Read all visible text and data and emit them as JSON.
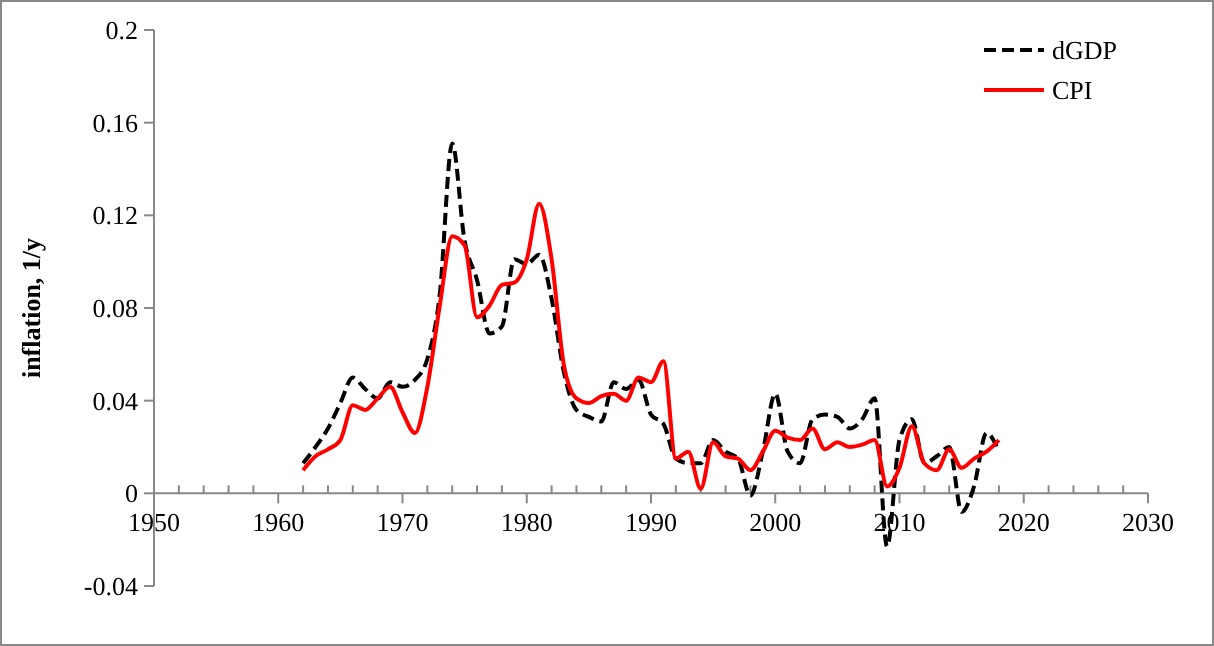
{
  "chart_data": {
    "type": "line",
    "ylabel": "inflation, 1/y",
    "x": [
      1962,
      1963,
      1964,
      1965,
      1966,
      1967,
      1968,
      1969,
      1970,
      1971,
      1972,
      1973,
      1974,
      1975,
      1976,
      1977,
      1978,
      1979,
      1980,
      1981,
      1982,
      1983,
      1984,
      1985,
      1986,
      1987,
      1988,
      1989,
      1990,
      1991,
      1992,
      1993,
      1994,
      1995,
      1996,
      1997,
      1998,
      1999,
      2000,
      2001,
      2002,
      2003,
      2004,
      2005,
      2006,
      2007,
      2008,
      2009,
      2010,
      2011,
      2012,
      2013,
      2014,
      2015,
      2016,
      2017,
      2018
    ],
    "series": [
      {
        "name": "dGDP",
        "color": "#000000",
        "line_style": "dashed",
        "values": [
          0.013,
          0.02,
          0.028,
          0.039,
          0.05,
          0.045,
          0.041,
          0.048,
          0.046,
          0.049,
          0.058,
          0.086,
          0.151,
          0.109,
          0.092,
          0.069,
          0.072,
          0.101,
          0.099,
          0.103,
          0.084,
          0.052,
          0.036,
          0.033,
          0.031,
          0.048,
          0.045,
          0.049,
          0.034,
          0.03,
          0.015,
          0.013,
          0.013,
          0.023,
          0.018,
          0.015,
          -0.001,
          0.018,
          0.043,
          0.018,
          0.013,
          0.032,
          0.034,
          0.033,
          0.028,
          0.032,
          0.041,
          -0.023,
          0.023,
          0.032,
          0.013,
          0.016,
          0.02,
          -0.008,
          0.003,
          0.026,
          0.018
        ]
      },
      {
        "name": "CPI",
        "color": "#ff0000",
        "line_style": "solid",
        "values": [
          0.01,
          0.016,
          0.019,
          0.023,
          0.038,
          0.036,
          0.041,
          0.046,
          0.035,
          0.026,
          0.046,
          0.081,
          0.111,
          0.107,
          0.076,
          0.081,
          0.09,
          0.091,
          0.101,
          0.125,
          0.101,
          0.055,
          0.041,
          0.039,
          0.042,
          0.043,
          0.04,
          0.05,
          0.048,
          0.057,
          0.015,
          0.018,
          0.002,
          0.022,
          0.016,
          0.015,
          0.01,
          0.018,
          0.027,
          0.024,
          0.023,
          0.028,
          0.019,
          0.022,
          0.02,
          0.021,
          0.023,
          0.003,
          0.011,
          0.029,
          0.013,
          0.01,
          0.019,
          0.011,
          0.015,
          0.018,
          0.023
        ]
      }
    ],
    "xlim": [
      1950,
      2030
    ],
    "xticks": [
      1950,
      {
        "value": 1952,
        "label": null
      },
      {
        "value": 1954,
        "label": null
      },
      {
        "value": 1956,
        "label": null
      },
      {
        "value": 1958,
        "label": null
      },
      1960,
      {
        "value": 1962,
        "label": null
      },
      {
        "value": 1964,
        "label": null
      },
      {
        "value": 1966,
        "label": null
      },
      {
        "value": 1968,
        "label": null
      },
      1970,
      {
        "value": 1972,
        "label": null
      },
      {
        "value": 1974,
        "label": null
      },
      {
        "value": 1976,
        "label": null
      },
      {
        "value": 1978,
        "label": null
      },
      1980,
      {
        "value": 1982,
        "label": null
      },
      {
        "value": 1984,
        "label": null
      },
      {
        "value": 1986,
        "label": null
      },
      {
        "value": 1988,
        "label": null
      },
      1990,
      {
        "value": 1992,
        "label": null
      },
      {
        "value": 1994,
        "label": null
      },
      {
        "value": 1996,
        "label": null
      },
      {
        "value": 1998,
        "label": null
      },
      2000,
      {
        "value": 2002,
        "label": null
      },
      {
        "value": 2004,
        "label": null
      },
      {
        "value": 2006,
        "label": null
      },
      {
        "value": 2008,
        "label": null
      },
      2010,
      {
        "value": 2012,
        "label": null
      },
      {
        "value": 2014,
        "label": null
      },
      {
        "value": 2016,
        "label": null
      },
      {
        "value": 2018,
        "label": null
      },
      2020,
      {
        "value": 2022,
        "label": null
      },
      {
        "value": 2024,
        "label": null
      },
      {
        "value": 2026,
        "label": null
      },
      {
        "value": 2028,
        "label": null
      },
      2030
    ],
    "ylim": [
      -0.04,
      0.2
    ],
    "yticks": [
      -0.04,
      0,
      0.04,
      0.08,
      0.12,
      0.16,
      0.2
    ],
    "grid": false,
    "legend": "top right",
    "marker": "none"
  }
}
